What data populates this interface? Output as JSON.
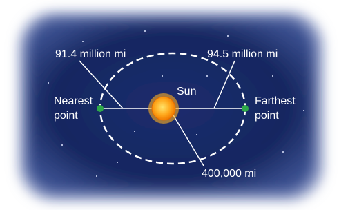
{
  "labels": {
    "nearest_distance": "91.4 million mi",
    "farthest_distance": "94.5 million mi",
    "nearest_point": [
      "Nearest",
      "point"
    ],
    "farthest_point": [
      "Farthest",
      "point"
    ],
    "sun": "Sun",
    "sun_diameter": "400,000 mi"
  }
}
